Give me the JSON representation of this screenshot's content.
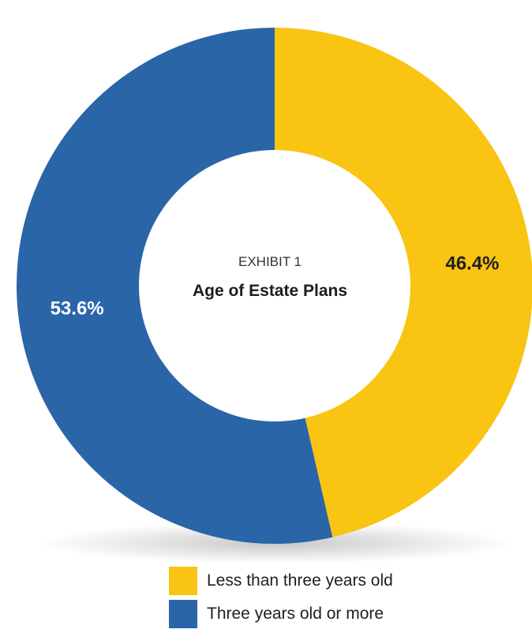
{
  "chart_data": {
    "type": "pie",
    "variant": "donut",
    "title": "Age of Estate Plans",
    "subtitle": "EXHIBIT 1",
    "series": [
      {
        "name": "Less than three years old",
        "value": 46.4,
        "label": "46.4%",
        "color": "#F9C412",
        "label_color": "#1e1e1e"
      },
      {
        "name": "Three years old or more",
        "value": 53.6,
        "label": "53.6%",
        "color": "#2A65A8",
        "label_color": "#ffffff"
      }
    ],
    "legend_position": "bottom"
  }
}
